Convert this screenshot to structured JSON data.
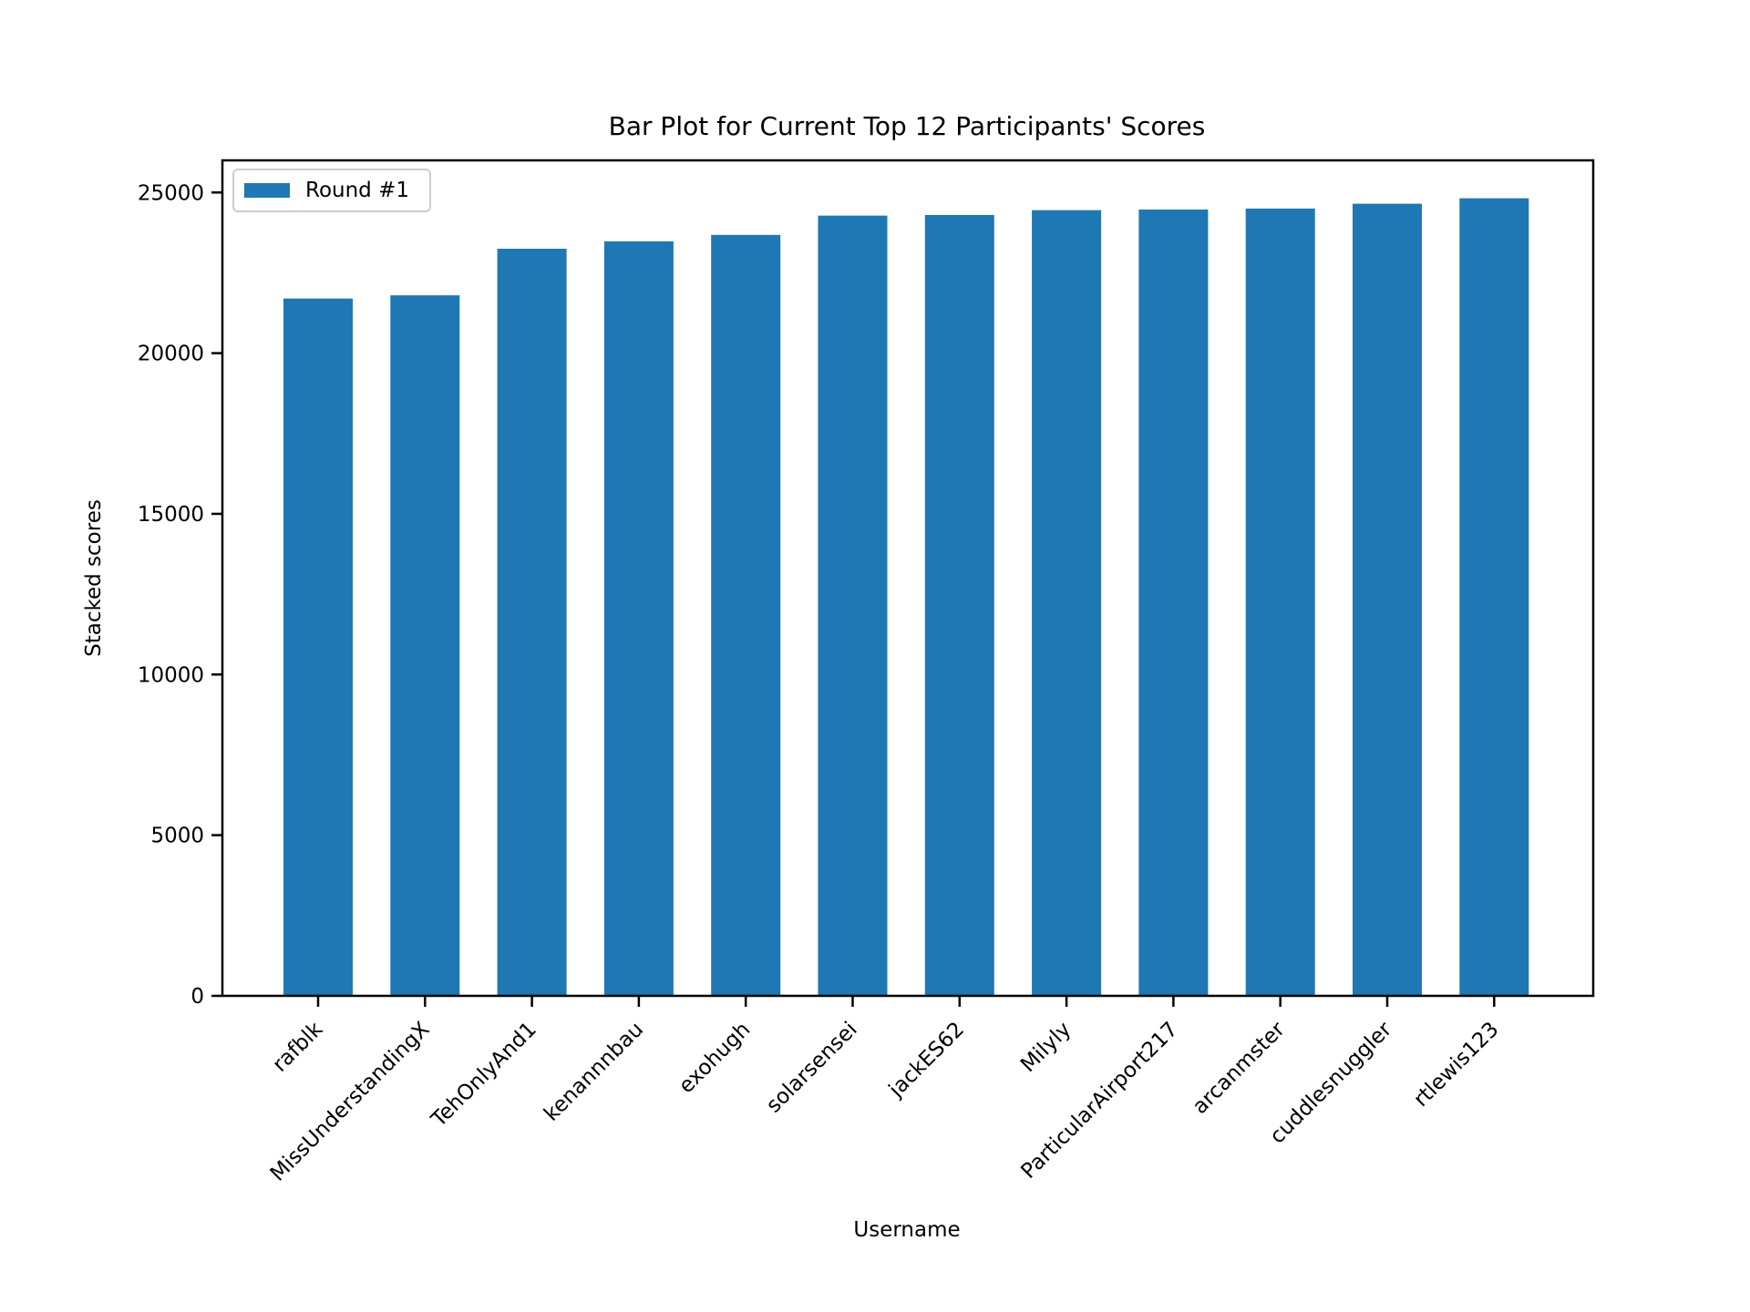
{
  "chart_data": {
    "type": "bar",
    "title": "Bar Plot for Current Top 12 Participants' Scores",
    "xlabel": "Username",
    "ylabel": "Stacked scores",
    "categories": [
      "rafblk",
      "MissUnderstandingX",
      "TehOnlyAnd1",
      "kenannnbau",
      "exohugh",
      "solarsensei",
      "jackES62",
      "Milyly",
      "ParticularAirport217",
      "arcanmster",
      "cuddlesnuggler",
      "rtlewis123"
    ],
    "series": [
      {
        "name": "Round #1",
        "color": "#1f77b4",
        "values": [
          21700,
          21800,
          23250,
          23480,
          23680,
          24280,
          24300,
          24450,
          24470,
          24500,
          24650,
          24820
        ]
      }
    ],
    "ylim": [
      0,
      26000
    ],
    "yticks": [
      0,
      5000,
      10000,
      15000,
      20000,
      25000
    ],
    "legend": {
      "position": "upper-left",
      "entries": [
        "Round #1"
      ]
    },
    "grid": false
  }
}
